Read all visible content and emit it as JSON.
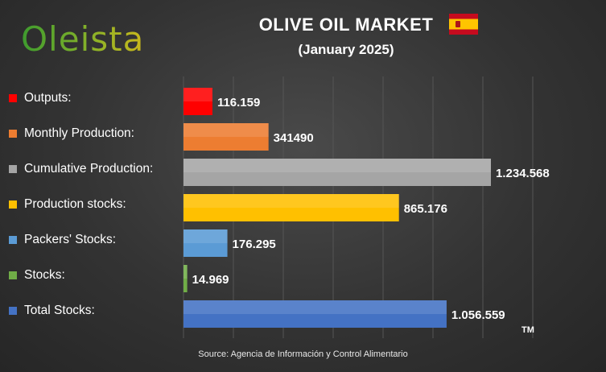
{
  "brand": {
    "logo_text": "Oleista"
  },
  "header": {
    "title": "OLIVE OIL MARKET",
    "subtitle": "(January 2025)"
  },
  "footer": {
    "source": "Source: Agencia de Información y Control Alimentario",
    "tm": "TM"
  },
  "chart_data": {
    "type": "bar",
    "orientation": "horizontal",
    "title": "OLIVE OIL MARKET",
    "subtitle": "(January 2025)",
    "xlim": [
      0,
      1350000
    ],
    "grid": true,
    "legend": "left",
    "categories": [
      "Outputs:",
      "Monthly Production:",
      "Cumulative Production:",
      "Production stocks:",
      "Packers' Stocks:",
      "Stocks:",
      "Total Stocks:"
    ],
    "values": [
      116159,
      341490,
      1234568,
      865176,
      176295,
      14969,
      1056559
    ],
    "value_labels": [
      "116.159",
      "341490",
      "1.234.568",
      "865.176",
      "176.295",
      "14.969",
      "1.056.559"
    ],
    "colors": [
      "#ff0000",
      "#ed7d31",
      "#a5a5a5",
      "#ffc000",
      "#5b9bd5",
      "#70ad47",
      "#4472c4"
    ]
  }
}
